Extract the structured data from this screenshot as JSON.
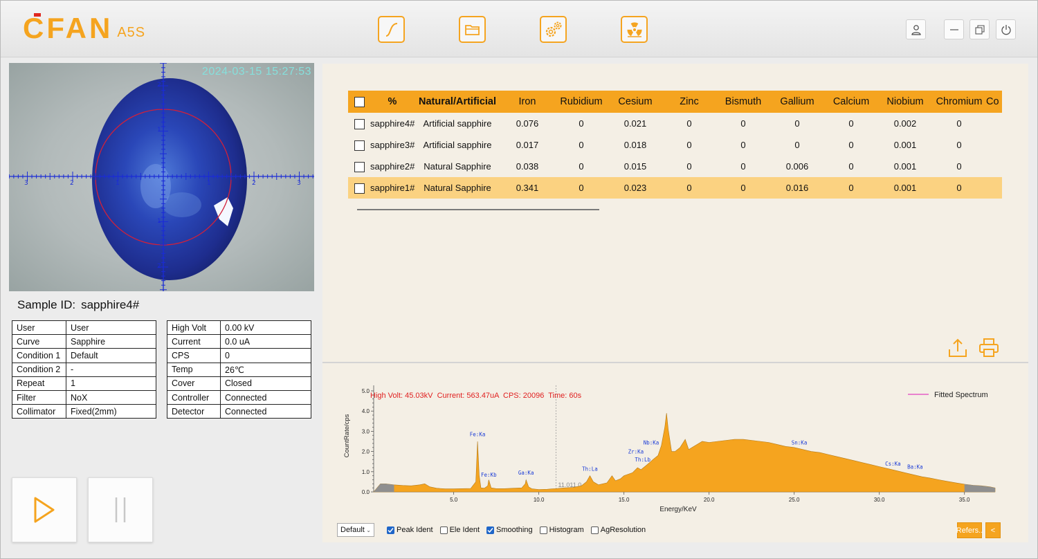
{
  "header": {
    "logo_text": "CFAN",
    "logo_model": "A5S",
    "tools": [
      "curve-icon",
      "folder-icon",
      "gears-icon",
      "radiation-icon"
    ],
    "window_buttons": [
      "user-icon",
      "minimize-icon",
      "restore-icon",
      "power-icon"
    ]
  },
  "camera": {
    "timestamp": "2024-03-15 15:27:53",
    "x_ticks": [
      "3",
      "2",
      "1",
      "1",
      "2",
      "3"
    ],
    "y_ticks": [
      "2",
      "1",
      "1",
      "2"
    ]
  },
  "sample": {
    "label": "Sample ID:",
    "value": "sapphire4#"
  },
  "info_left": [
    [
      "User",
      "User"
    ],
    [
      "Curve",
      "Sapphire"
    ],
    [
      "Condition 1",
      "Default"
    ],
    [
      "Condition 2",
      "-"
    ],
    [
      "Repeat",
      "1"
    ],
    [
      "Filter",
      "NoX"
    ],
    [
      "Collimator",
      "Fixed(2mm)"
    ]
  ],
  "info_right": [
    [
      "High Volt",
      "0.00 kV"
    ],
    [
      "Current",
      "0.0 uA"
    ],
    [
      "CPS",
      "0"
    ],
    [
      "Temp",
      "26℃"
    ],
    [
      "Cover",
      "Closed"
    ],
    [
      "Controller",
      "Connected"
    ],
    [
      "Detector",
      "Connected"
    ]
  ],
  "results": {
    "columns": [
      "%",
      "Natural/Artificial",
      "Iron",
      "Rubidium",
      "Cesium",
      "Zinc",
      "Bismuth",
      "Gallium",
      "Calcium",
      "Niobium",
      "Chromium",
      "Co"
    ],
    "rows": [
      [
        "sapphire4#",
        "Artificial sapphire",
        "0.076",
        "0",
        "0.021",
        "0",
        "0",
        "0",
        "0",
        "0.002",
        "0",
        ""
      ],
      [
        "sapphire3#",
        "Artificial sapphire",
        "0.017",
        "0",
        "0.018",
        "0",
        "0",
        "0",
        "0",
        "0.001",
        "0",
        ""
      ],
      [
        "sapphire2#",
        "Natural Sapphire",
        "0.038",
        "0",
        "0.015",
        "0",
        "0",
        "0.006",
        "0",
        "0.001",
        "0",
        ""
      ],
      [
        "sapphire1#",
        "Natural Sapphire",
        "0.341",
        "0",
        "0.023",
        "0",
        "0",
        "0.016",
        "0",
        "0.001",
        "0",
        ""
      ]
    ],
    "selected_row": 3
  },
  "spectrum": {
    "status": "High Volt: 45.03kV  Current: 563.47uA  CPS: 20096  Time: 60s",
    "legend": "Fitted Spectrum",
    "ylabel": "CountRate/cps",
    "xlabel": "Energy/KeV",
    "y_ticks": [
      "0.0",
      "1.0",
      "2.0",
      "3.0",
      "4.0",
      "5.0"
    ],
    "x_ticks": [
      "5.0",
      "10.0",
      "15.0",
      "20.0",
      "25.0",
      "30.0",
      "35.0"
    ],
    "cursor_label": "11.011,0",
    "peaks": [
      "Fe:Ka",
      "Fe:Kb",
      "Ga:Ka",
      "Th:La",
      "Zr:Ka",
      "Th:Lb",
      "Nb:Ka",
      "Sn:Ka",
      "Cs:Ka",
      "Ba:Ka"
    ]
  },
  "chart_data": {
    "type": "area",
    "xlabel": "Energy/KeV",
    "ylabel": "CountRate/cps",
    "xlim": [
      0.3,
      36.8
    ],
    "ylim": [
      0,
      5.0
    ],
    "series": [
      {
        "name": "Fitted Spectrum",
        "x": [
          0.3,
          0.7,
          1.0,
          1.5,
          2.0,
          2.5,
          3.0,
          3.3,
          3.6,
          4.0,
          4.5,
          5.0,
          5.5,
          6.0,
          6.3,
          6.4,
          6.5,
          6.6,
          6.8,
          7.0,
          7.06,
          7.2,
          7.5,
          8.0,
          8.5,
          9.0,
          9.2,
          9.25,
          9.4,
          9.6,
          10.0,
          10.5,
          10.8,
          11.0,
          11.5,
          12.0,
          12.5,
          12.8,
          13.0,
          13.2,
          13.5,
          14.0,
          14.3,
          14.5,
          14.8,
          15.0,
          15.5,
          15.8,
          16.0,
          16.3,
          16.5,
          16.7,
          17.0,
          17.2,
          17.4,
          17.5,
          17.6,
          17.8,
          18.0,
          18.3,
          18.6,
          18.8,
          19.0,
          19.4,
          19.6,
          20.0,
          20.5,
          21.0,
          21.5,
          22.0,
          22.5,
          23.0,
          23.5,
          24.0,
          24.5,
          25.0,
          25.5,
          26.0,
          26.5,
          27.0,
          27.5,
          28.0,
          28.5,
          29.0,
          29.5,
          30.0,
          30.5,
          31.0,
          31.5,
          32.0,
          32.5,
          33.0,
          33.5,
          34.0,
          34.5,
          35.0,
          35.5,
          36.0,
          36.5,
          36.8
        ],
        "y": [
          0.0,
          0.4,
          0.4,
          0.35,
          0.32,
          0.3,
          0.35,
          0.4,
          0.25,
          0.18,
          0.15,
          0.15,
          0.16,
          0.17,
          0.5,
          2.5,
          0.8,
          0.2,
          0.18,
          0.3,
          0.6,
          0.2,
          0.16,
          0.16,
          0.18,
          0.2,
          0.4,
          0.6,
          0.25,
          0.15,
          0.12,
          0.13,
          0.15,
          0.16,
          0.2,
          0.22,
          0.3,
          0.5,
          0.8,
          0.5,
          0.35,
          0.45,
          0.8,
          0.55,
          0.65,
          0.8,
          0.95,
          1.2,
          1.1,
          1.3,
          1.45,
          1.6,
          1.8,
          2.3,
          3.2,
          3.9,
          3.1,
          2.0,
          2.0,
          2.2,
          2.6,
          2.1,
          2.2,
          2.4,
          2.5,
          2.45,
          2.5,
          2.55,
          2.6,
          2.6,
          2.55,
          2.5,
          2.45,
          2.35,
          2.25,
          2.2,
          2.1,
          2.0,
          1.95,
          1.85,
          1.75,
          1.65,
          1.55,
          1.45,
          1.35,
          1.25,
          1.15,
          1.05,
          0.95,
          0.85,
          0.75,
          0.68,
          0.6,
          0.52,
          0.45,
          0.38,
          0.33,
          0.3,
          0.25,
          0.2
        ]
      }
    ],
    "labels": [
      {
        "text": "Fe:Ka",
        "x": 6.4,
        "y": 2.75
      },
      {
        "text": "Fe:Kb",
        "x": 7.06,
        "y": 0.75
      },
      {
        "text": "Ga:Ka",
        "x": 9.25,
        "y": 0.85
      },
      {
        "text": "Th:La",
        "x": 13.0,
        "y": 1.05
      },
      {
        "text": "Zr:Ka",
        "x": 15.7,
        "y": 1.9
      },
      {
        "text": "Th:Lb",
        "x": 16.1,
        "y": 1.5
      },
      {
        "text": "Nb:Ka",
        "x": 16.6,
        "y": 2.35
      },
      {
        "text": "Sn:Ka",
        "x": 25.3,
        "y": 2.35
      },
      {
        "text": "Cs:Ka",
        "x": 30.8,
        "y": 1.3
      },
      {
        "text": "Ba:Ka",
        "x": 32.1,
        "y": 1.15
      }
    ]
  },
  "bottom": {
    "select_value": "Default",
    "checks": [
      {
        "label": "Peak Ident",
        "on": true
      },
      {
        "label": "Ele Ident",
        "on": false
      },
      {
        "label": "Smoothing",
        "on": true
      },
      {
        "label": "Histogram",
        "on": false
      },
      {
        "label": "AgResolution",
        "on": false
      }
    ],
    "refers_label": "Refers..",
    "collapse_label": "<"
  },
  "colors": {
    "accent": "#f5a41f",
    "selected_row": "#fbd281",
    "status_red": "#e02020",
    "legend_line": "#e040c0",
    "axis_blue": "#1a2bd6"
  }
}
